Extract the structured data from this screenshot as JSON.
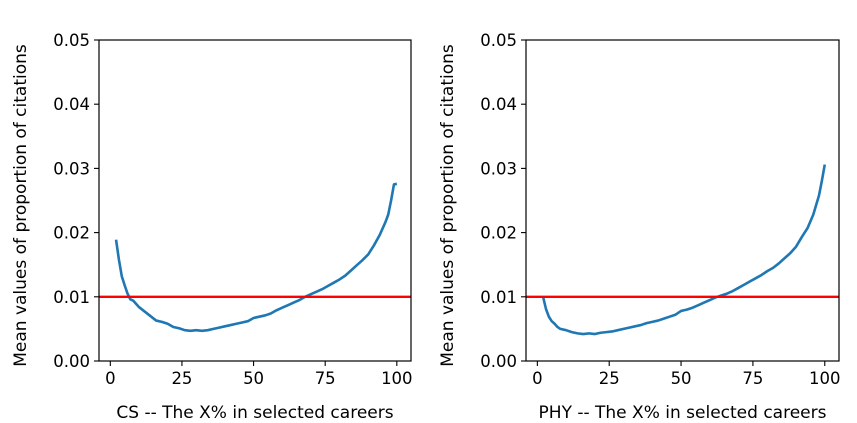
{
  "chart_data": [
    {
      "type": "line",
      "title": "",
      "xlabel": "CS -- The X% in selected careers",
      "ylabel": "Mean values of proportion of citations",
      "xlim": [
        -3.95,
        104.95
      ],
      "ylim": [
        0,
        0.05
      ],
      "xticks": [
        0,
        25,
        50,
        75,
        100
      ],
      "yticks": [
        0.0,
        0.01,
        0.02,
        0.03,
        0.04,
        0.05
      ],
      "ytick_labels": [
        "0.00",
        "0.01",
        "0.02",
        "0.03",
        "0.04",
        "0.05"
      ],
      "grid": false,
      "hline": {
        "y": 0.01,
        "color": "#ff0000"
      },
      "series": [
        {
          "color": "#1f77b4",
          "x": [
            2,
            3,
            4,
            5,
            6,
            7,
            8,
            9,
            10,
            12,
            14,
            16,
            18,
            20,
            22,
            24,
            26,
            28,
            30,
            32,
            34,
            36,
            38,
            40,
            42,
            44,
            46,
            48,
            50,
            52,
            54,
            56,
            58,
            60,
            62,
            64,
            66,
            68,
            70,
            72,
            74,
            76,
            78,
            80,
            82,
            84,
            86,
            88,
            90,
            92,
            94,
            96,
            97,
            98,
            99,
            100
          ],
          "y": [
            0.0189,
            0.0158,
            0.0132,
            0.0118,
            0.0105,
            0.0096,
            0.0094,
            0.0089,
            0.0084,
            0.0077,
            0.007,
            0.0063,
            0.0061,
            0.0058,
            0.0053,
            0.0051,
            0.0048,
            0.0047,
            0.0048,
            0.0047,
            0.0048,
            0.005,
            0.0052,
            0.0054,
            0.0056,
            0.0058,
            0.006,
            0.0062,
            0.0067,
            0.0069,
            0.0071,
            0.0074,
            0.0079,
            0.0083,
            0.0087,
            0.0091,
            0.0095,
            0.01,
            0.0104,
            0.0108,
            0.0112,
            0.0117,
            0.0122,
            0.0127,
            0.0133,
            0.0141,
            0.0149,
            0.0157,
            0.0166,
            0.018,
            0.0196,
            0.0216,
            0.0228,
            0.025,
            0.0275,
            0.0276
          ]
        }
      ]
    },
    {
      "type": "line",
      "title": "",
      "xlabel": "PHY -- The X% in selected careers",
      "ylabel": "Mean values of proportion of citations",
      "xlim": [
        -3.95,
        104.95
      ],
      "ylim": [
        0,
        0.05
      ],
      "xticks": [
        0,
        25,
        50,
        75,
        100
      ],
      "yticks": [
        0.0,
        0.01,
        0.02,
        0.03,
        0.04,
        0.05
      ],
      "ytick_labels": [
        "0.00",
        "0.01",
        "0.02",
        "0.03",
        "0.04",
        "0.05"
      ],
      "grid": false,
      "hline": {
        "y": 0.01,
        "color": "#ff0000"
      },
      "series": [
        {
          "color": "#1f77b4",
          "x": [
            2,
            3,
            4,
            5,
            6,
            7,
            8,
            10,
            12,
            14,
            16,
            18,
            20,
            22,
            24,
            26,
            28,
            30,
            32,
            34,
            36,
            38,
            40,
            42,
            44,
            46,
            48,
            50,
            52,
            54,
            56,
            58,
            60,
            62,
            64,
            66,
            68,
            70,
            72,
            74,
            76,
            78,
            80,
            82,
            84,
            86,
            88,
            90,
            92,
            94,
            96,
            98,
            99,
            100
          ],
          "y": [
            0.01,
            0.0081,
            0.0069,
            0.0062,
            0.0058,
            0.0053,
            0.005,
            0.0048,
            0.0045,
            0.0043,
            0.0042,
            0.0043,
            0.0042,
            0.0044,
            0.0045,
            0.0046,
            0.0048,
            0.005,
            0.0052,
            0.0054,
            0.0056,
            0.0059,
            0.0061,
            0.0063,
            0.0066,
            0.0069,
            0.0072,
            0.0078,
            0.008,
            0.0083,
            0.0087,
            0.0091,
            0.0095,
            0.0099,
            0.0102,
            0.0105,
            0.0109,
            0.0114,
            0.0119,
            0.0124,
            0.0129,
            0.0134,
            0.014,
            0.0145,
            0.0152,
            0.016,
            0.0168,
            0.0178,
            0.0193,
            0.0207,
            0.0228,
            0.0258,
            0.0281,
            0.0306
          ]
        }
      ]
    }
  ]
}
